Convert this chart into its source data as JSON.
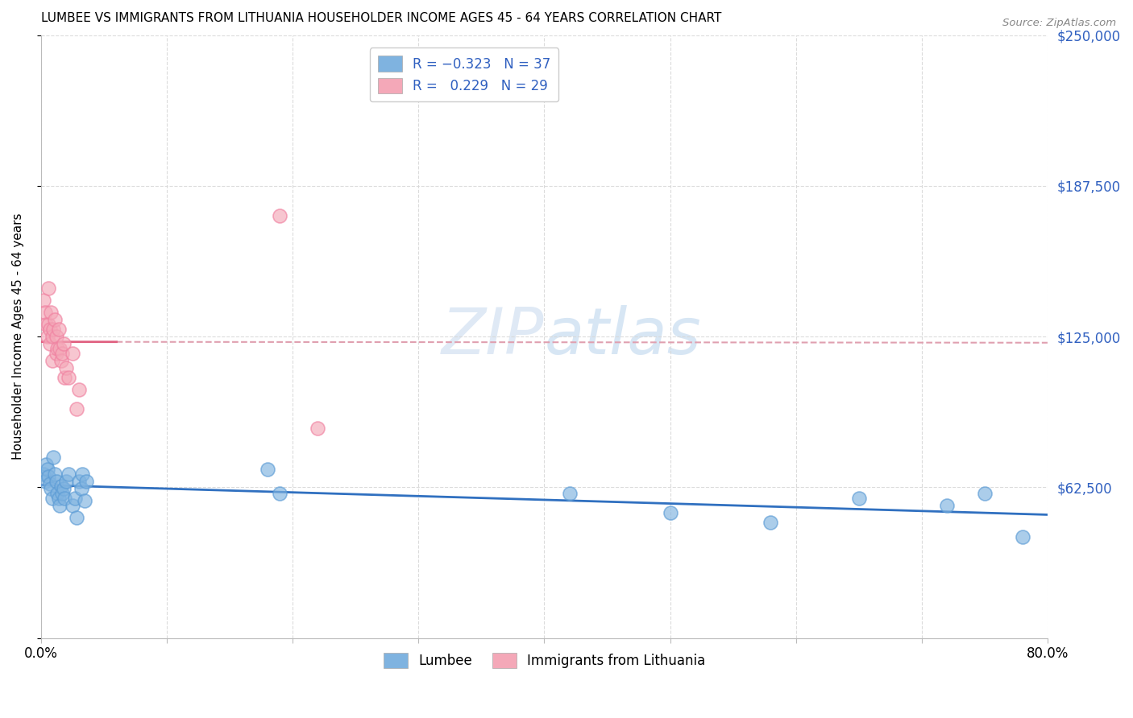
{
  "title": "LUMBEE VS IMMIGRANTS FROM LITHUANIA HOUSEHOLDER INCOME AGES 45 - 64 YEARS CORRELATION CHART",
  "source": "Source: ZipAtlas.com",
  "ylabel": "Householder Income Ages 45 - 64 years",
  "lumbee_label": "Lumbee",
  "lithuania_label": "Immigrants from Lithuania",
  "xlim": [
    0,
    0.8
  ],
  "ylim": [
    0,
    250000
  ],
  "yticks": [
    0,
    62500,
    125000,
    187500,
    250000
  ],
  "ytick_labels": [
    "",
    "$62,500",
    "$125,000",
    "$187,500",
    "$250,000"
  ],
  "blue_color": "#7fb3e0",
  "pink_color": "#f4a8b8",
  "blue_edge": "#5b9bd5",
  "pink_edge": "#f080a0",
  "trend_blue_color": "#3070c0",
  "trend_pink_color": "#e06080",
  "trend_pink_dash_color": "#e0a0b0",
  "r_blue": -0.323,
  "n_blue": 37,
  "r_pink": 0.229,
  "n_pink": 29,
  "lumbee_x": [
    0.002,
    0.003,
    0.004,
    0.005,
    0.006,
    0.007,
    0.008,
    0.009,
    0.01,
    0.011,
    0.012,
    0.013,
    0.014,
    0.015,
    0.016,
    0.017,
    0.018,
    0.019,
    0.02,
    0.022,
    0.025,
    0.027,
    0.03,
    0.032,
    0.035,
    0.028,
    0.033,
    0.036,
    0.18,
    0.19,
    0.42,
    0.5,
    0.58,
    0.65,
    0.72,
    0.75,
    0.78
  ],
  "lumbee_y": [
    68000,
    65000,
    72000,
    70000,
    67000,
    64000,
    62000,
    58000,
    75000,
    68000,
    65000,
    60000,
    58000,
    55000,
    63000,
    60000,
    62000,
    58000,
    65000,
    68000,
    55000,
    58000,
    65000,
    62000,
    57000,
    50000,
    68000,
    65000,
    70000,
    60000,
    60000,
    52000,
    48000,
    58000,
    55000,
    60000,
    42000
  ],
  "lithuania_x": [
    0.002,
    0.003,
    0.004,
    0.005,
    0.006,
    0.006,
    0.007,
    0.007,
    0.008,
    0.009,
    0.009,
    0.01,
    0.011,
    0.012,
    0.012,
    0.013,
    0.014,
    0.015,
    0.016,
    0.017,
    0.018,
    0.019,
    0.02,
    0.022,
    0.025,
    0.028,
    0.03,
    0.19,
    0.22
  ],
  "lithuania_y": [
    140000,
    135000,
    130000,
    125000,
    145000,
    130000,
    128000,
    122000,
    135000,
    125000,
    115000,
    128000,
    132000,
    125000,
    118000,
    120000,
    128000,
    120000,
    115000,
    118000,
    122000,
    108000,
    112000,
    108000,
    118000,
    95000,
    103000,
    175000,
    87000
  ]
}
